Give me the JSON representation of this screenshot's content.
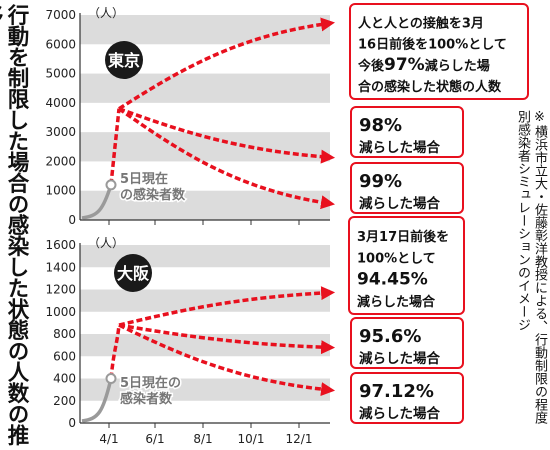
{
  "title": "行動を制限した場合の感染した状態の人数の推移",
  "note": "※横浜市立大・佐藤彰洋教授による、行動制限の程度別感染者シミュレーションのイメージ",
  "x_ticks": [
    "4/1",
    "6/1",
    "8/1",
    "10/1",
    "12/1"
  ],
  "colors": {
    "curve": "#e8101e",
    "early": "#9a9a9a",
    "band": "#dcdcdc",
    "badge": "#1a1a1a"
  },
  "chart_data": [
    {
      "type": "line",
      "panel": "東京",
      "unit": "（人）",
      "yticks": [
        0,
        1000,
        2000,
        3000,
        4000,
        5000,
        6000,
        7000
      ],
      "ylim": [
        0,
        7000
      ],
      "marker": {
        "label": [
          "5日現在",
          "の感染者数"
        ],
        "value": 1200
      },
      "peak": {
        "value": 3800
      },
      "series": [
        {
          "callout": [
            [
              {
                "t": "人と人との接触を3月"
              }
            ],
            [
              {
                "t": "16日前後を100%として"
              }
            ],
            [
              {
                "t": "今後"
              },
              {
                "t": "97%",
                "big": true
              },
              {
                "t": "減らした場"
              }
            ],
            [
              {
                "t": "合の感染した状態の人数"
              }
            ]
          ],
          "end": 6700
        },
        {
          "callout": [
            [
              {
                "t": "98%",
                "big": true
              }
            ],
            [
              {
                "t": "減らした場合"
              }
            ]
          ],
          "end": 2150
        },
        {
          "callout": [
            [
              {
                "t": "99%",
                "big": true
              }
            ],
            [
              {
                "t": "減らした場合"
              }
            ]
          ],
          "end": 580
        }
      ]
    },
    {
      "type": "line",
      "panel": "大阪",
      "unit": "（人）",
      "yticks": [
        0,
        200,
        400,
        600,
        800,
        1000,
        1200,
        1400,
        1600
      ],
      "ylim": [
        0,
        1600
      ],
      "marker": {
        "label": [
          "5日現在の",
          "感染者数"
        ],
        "value": 400
      },
      "peak": {
        "value": 880
      },
      "series": [
        {
          "callout": [
            [
              {
                "t": "3月17日前後を"
              }
            ],
            [
              {
                "t": "100%として"
              }
            ],
            [
              {
                "t": "94.45%",
                "big": true
              }
            ],
            [
              {
                "t": "減らした場合"
              }
            ]
          ],
          "end": 1170
        },
        {
          "callout": [
            [
              {
                "t": "95.6%",
                "big": true
              }
            ],
            [
              {
                "t": "減らした場合"
              }
            ]
          ],
          "end": 680
        },
        {
          "callout": [
            [
              {
                "t": "97.12%",
                "big": true
              }
            ],
            [
              {
                "t": "減らした場合"
              }
            ]
          ],
          "end": 300
        }
      ]
    }
  ]
}
